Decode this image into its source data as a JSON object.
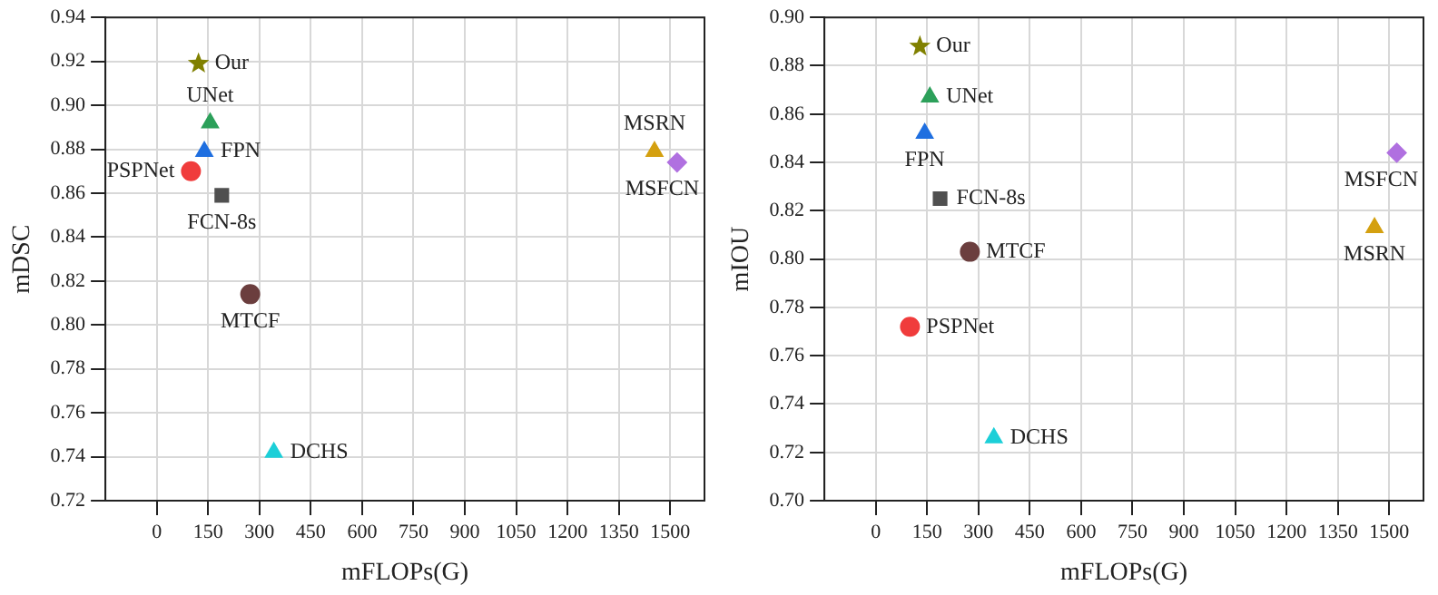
{
  "chart_data": [
    {
      "type": "scatter",
      "xlabel": "mFLOPs(G)",
      "ylabel": "mDSC",
      "xlim": [
        -150,
        1600
      ],
      "xticks": [
        0,
        150,
        300,
        450,
        600,
        750,
        900,
        1050,
        1200,
        1350,
        1500
      ],
      "ylim": [
        0.72,
        0.94
      ],
      "yticks": [
        {
          "value": 0.72,
          "label": "0.72"
        },
        {
          "value": 0.74,
          "label": "0.74"
        },
        {
          "value": 0.76,
          "label": "0.76"
        },
        {
          "value": 0.78,
          "label": "0.78"
        },
        {
          "value": 0.8,
          "label": "0.80"
        },
        {
          "value": 0.82,
          "label": "0.82"
        },
        {
          "value": 0.84,
          "label": "0.84"
        },
        {
          "value": 0.86,
          "label": "0.86"
        },
        {
          "value": 0.88,
          "label": "0.88"
        },
        {
          "value": 0.9,
          "label": "0.90"
        },
        {
          "value": 0.92,
          "label": "0.92"
        },
        {
          "value": 0.94,
          "label": "0.94"
        }
      ],
      "grid": true,
      "legend": false,
      "series": [
        {
          "name": "Our",
          "color": "#808000",
          "marker": "star",
          "x": [
            122
          ],
          "values": [
            0.919
          ]
        },
        {
          "name": "UNet",
          "color": "#2ca05a",
          "marker": "triangle",
          "x": [
            156
          ],
          "values": [
            0.892
          ]
        },
        {
          "name": "FPN",
          "color": "#1f6fe0",
          "marker": "triangle",
          "x": [
            139
          ],
          "values": [
            0.879
          ]
        },
        {
          "name": "PSPNet",
          "color": "#f03c3c",
          "marker": "circle",
          "x": [
            100
          ],
          "values": [
            0.87
          ]
        },
        {
          "name": "FCN-8s",
          "color": "#505050",
          "marker": "square",
          "x": [
            190
          ],
          "values": [
            0.859
          ]
        },
        {
          "name": "MTCF",
          "color": "#6b3e3e",
          "marker": "circle",
          "x": [
            273
          ],
          "values": [
            0.814
          ]
        },
        {
          "name": "DCHS",
          "color": "#1ccfd8",
          "marker": "triangle",
          "x": [
            342
          ],
          "values": [
            0.742
          ]
        },
        {
          "name": "MSRN",
          "color": "#d4a010",
          "marker": "triangle",
          "x": [
            1454
          ],
          "values": [
            0.879
          ]
        },
        {
          "name": "MSFCN",
          "color": "#b070e0",
          "marker": "diamond",
          "x": [
            1520
          ],
          "values": [
            0.874
          ]
        }
      ]
    },
    {
      "type": "scatter",
      "xlabel": "mFLOPs(G)",
      "ylabel": "mIOU",
      "xlim": [
        -150,
        1600
      ],
      "xticks": [
        0,
        150,
        300,
        450,
        600,
        750,
        900,
        1050,
        1200,
        1350,
        1500
      ],
      "ylim": [
        0.7,
        0.9
      ],
      "yticks": [
        {
          "value": 0.7,
          "label": "0.70"
        },
        {
          "value": 0.72,
          "label": "0.72"
        },
        {
          "value": 0.74,
          "label": "0.74"
        },
        {
          "value": 0.76,
          "label": "0.76"
        },
        {
          "value": 0.78,
          "label": "0.78"
        },
        {
          "value": 0.8,
          "label": "0.80"
        },
        {
          "value": 0.82,
          "label": "0.82"
        },
        {
          "value": 0.84,
          "label": "0.84"
        },
        {
          "value": 0.86,
          "label": "0.86"
        },
        {
          "value": 0.88,
          "label": "0.88"
        },
        {
          "value": 0.9,
          "label": "0.90"
        }
      ],
      "grid": true,
      "legend": false,
      "series": [
        {
          "name": "Our",
          "color": "#808000",
          "marker": "star",
          "x": [
            129
          ],
          "values": [
            0.888
          ]
        },
        {
          "name": "UNet",
          "color": "#2ca05a",
          "marker": "triangle",
          "x": [
            158
          ],
          "values": [
            0.867
          ]
        },
        {
          "name": "FPN",
          "color": "#1f6fe0",
          "marker": "triangle",
          "x": [
            143
          ],
          "values": [
            0.852
          ]
        },
        {
          "name": "PSPNet",
          "color": "#f03c3c",
          "marker": "circle",
          "x": [
            100
          ],
          "values": [
            0.772
          ]
        },
        {
          "name": "FCN-8s",
          "color": "#505050",
          "marker": "square",
          "x": [
            188
          ],
          "values": [
            0.825
          ]
        },
        {
          "name": "MTCF",
          "color": "#6b3e3e",
          "marker": "circle",
          "x": [
            275
          ],
          "values": [
            0.803
          ]
        },
        {
          "name": "DCHS",
          "color": "#1ccfd8",
          "marker": "triangle",
          "x": [
            345
          ],
          "values": [
            0.726
          ]
        },
        {
          "name": "MSRN",
          "color": "#d4a010",
          "marker": "triangle",
          "x": [
            1457
          ],
          "values": [
            0.813
          ]
        },
        {
          "name": "MSFCN",
          "color": "#b070e0",
          "marker": "diamond",
          "x": [
            1522
          ],
          "values": [
            0.844
          ]
        }
      ]
    }
  ]
}
